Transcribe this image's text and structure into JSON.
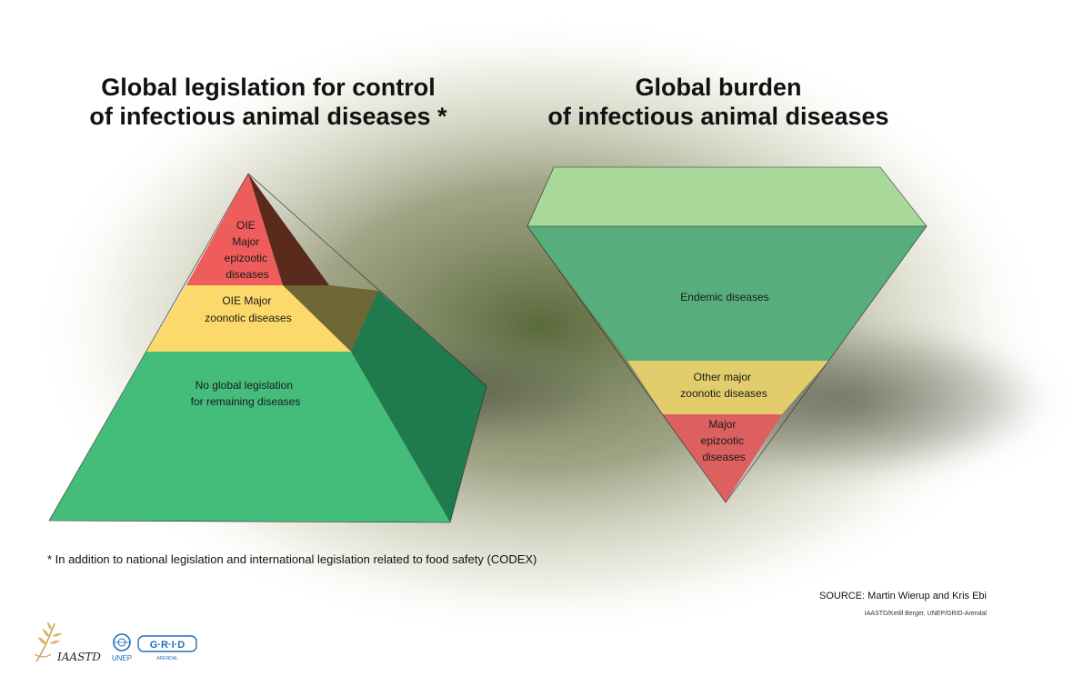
{
  "titles": {
    "left": "Global legislation for control\nof infectious animal diseases *",
    "right": "Global burden\nof infectious animal diseases"
  },
  "legislation_pyramid": {
    "tiers": [
      {
        "lines": [
          "OIE",
          "Major",
          "epizootic",
          "diseases"
        ],
        "color": "#ee5c5c"
      },
      {
        "lines": [
          "OIE Major",
          "zoonotic diseases"
        ],
        "color": "#fbd96a"
      },
      {
        "lines": [
          "No global legislation",
          "for remaining diseases"
        ],
        "color": "#44bd7b"
      }
    ]
  },
  "burden_pyramid": {
    "tiers": [
      {
        "lines": [
          "Endemic diseases"
        ],
        "color": "#58ad7c"
      },
      {
        "lines": [
          "Other major",
          "zoonotic diseases"
        ],
        "color": "#e2cc6c"
      },
      {
        "lines": [
          "Major",
          "epizootic",
          "diseases"
        ],
        "color": "#dc6060"
      }
    ]
  },
  "footnote": "* In addition to national legislation and international legislation related to food safety (CODEX)",
  "source": "SOURCE: Martin Wierup and Kris Ebi",
  "credit": "IAASTD/Ketill Berger, UNEP/GRID-Arendal",
  "logos": {
    "iaastd": "IAASTD",
    "unep": "UNEP",
    "grid": "G·R·I·D",
    "arendal": "ARENDAL"
  }
}
